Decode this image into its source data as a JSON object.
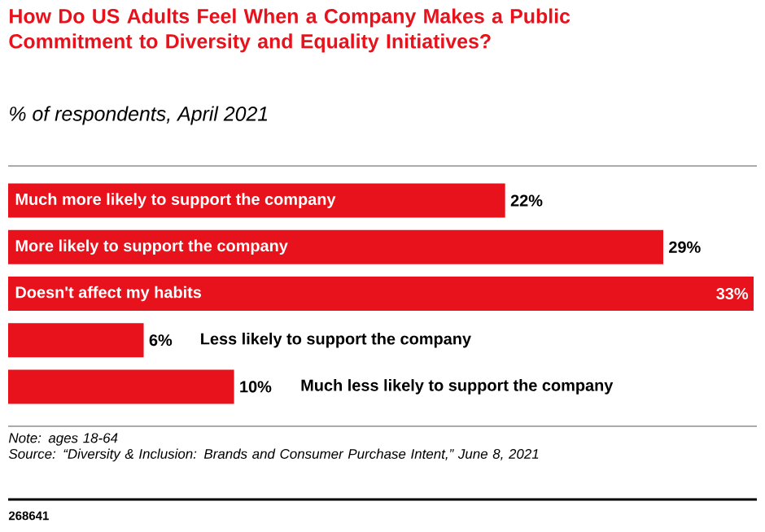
{
  "chart_data": {
    "type": "bar",
    "orientation": "horizontal",
    "title": "How Do US Adults Feel When a Company Makes a Public Commitment to Diversity and Equality Initiatives?",
    "subtitle": "% of respondents, April 2021",
    "categories": [
      "Much more likely to support the company",
      "More likely to support the company",
      "Doesn't affect my habits",
      "Less likely to support the company",
      "Much less likely to support the company"
    ],
    "values": [
      22,
      29,
      33,
      6,
      10
    ],
    "value_labels": [
      "22%",
      "29%",
      "33%",
      "6%",
      "10%"
    ],
    "color": "#e8121c",
    "annotations": [
      "Note: ages 18-64",
      "Source: “Diversity & Inclusion: Brands and Consumer Purchase Intent,” June 8, 2021",
      "268641"
    ]
  }
}
